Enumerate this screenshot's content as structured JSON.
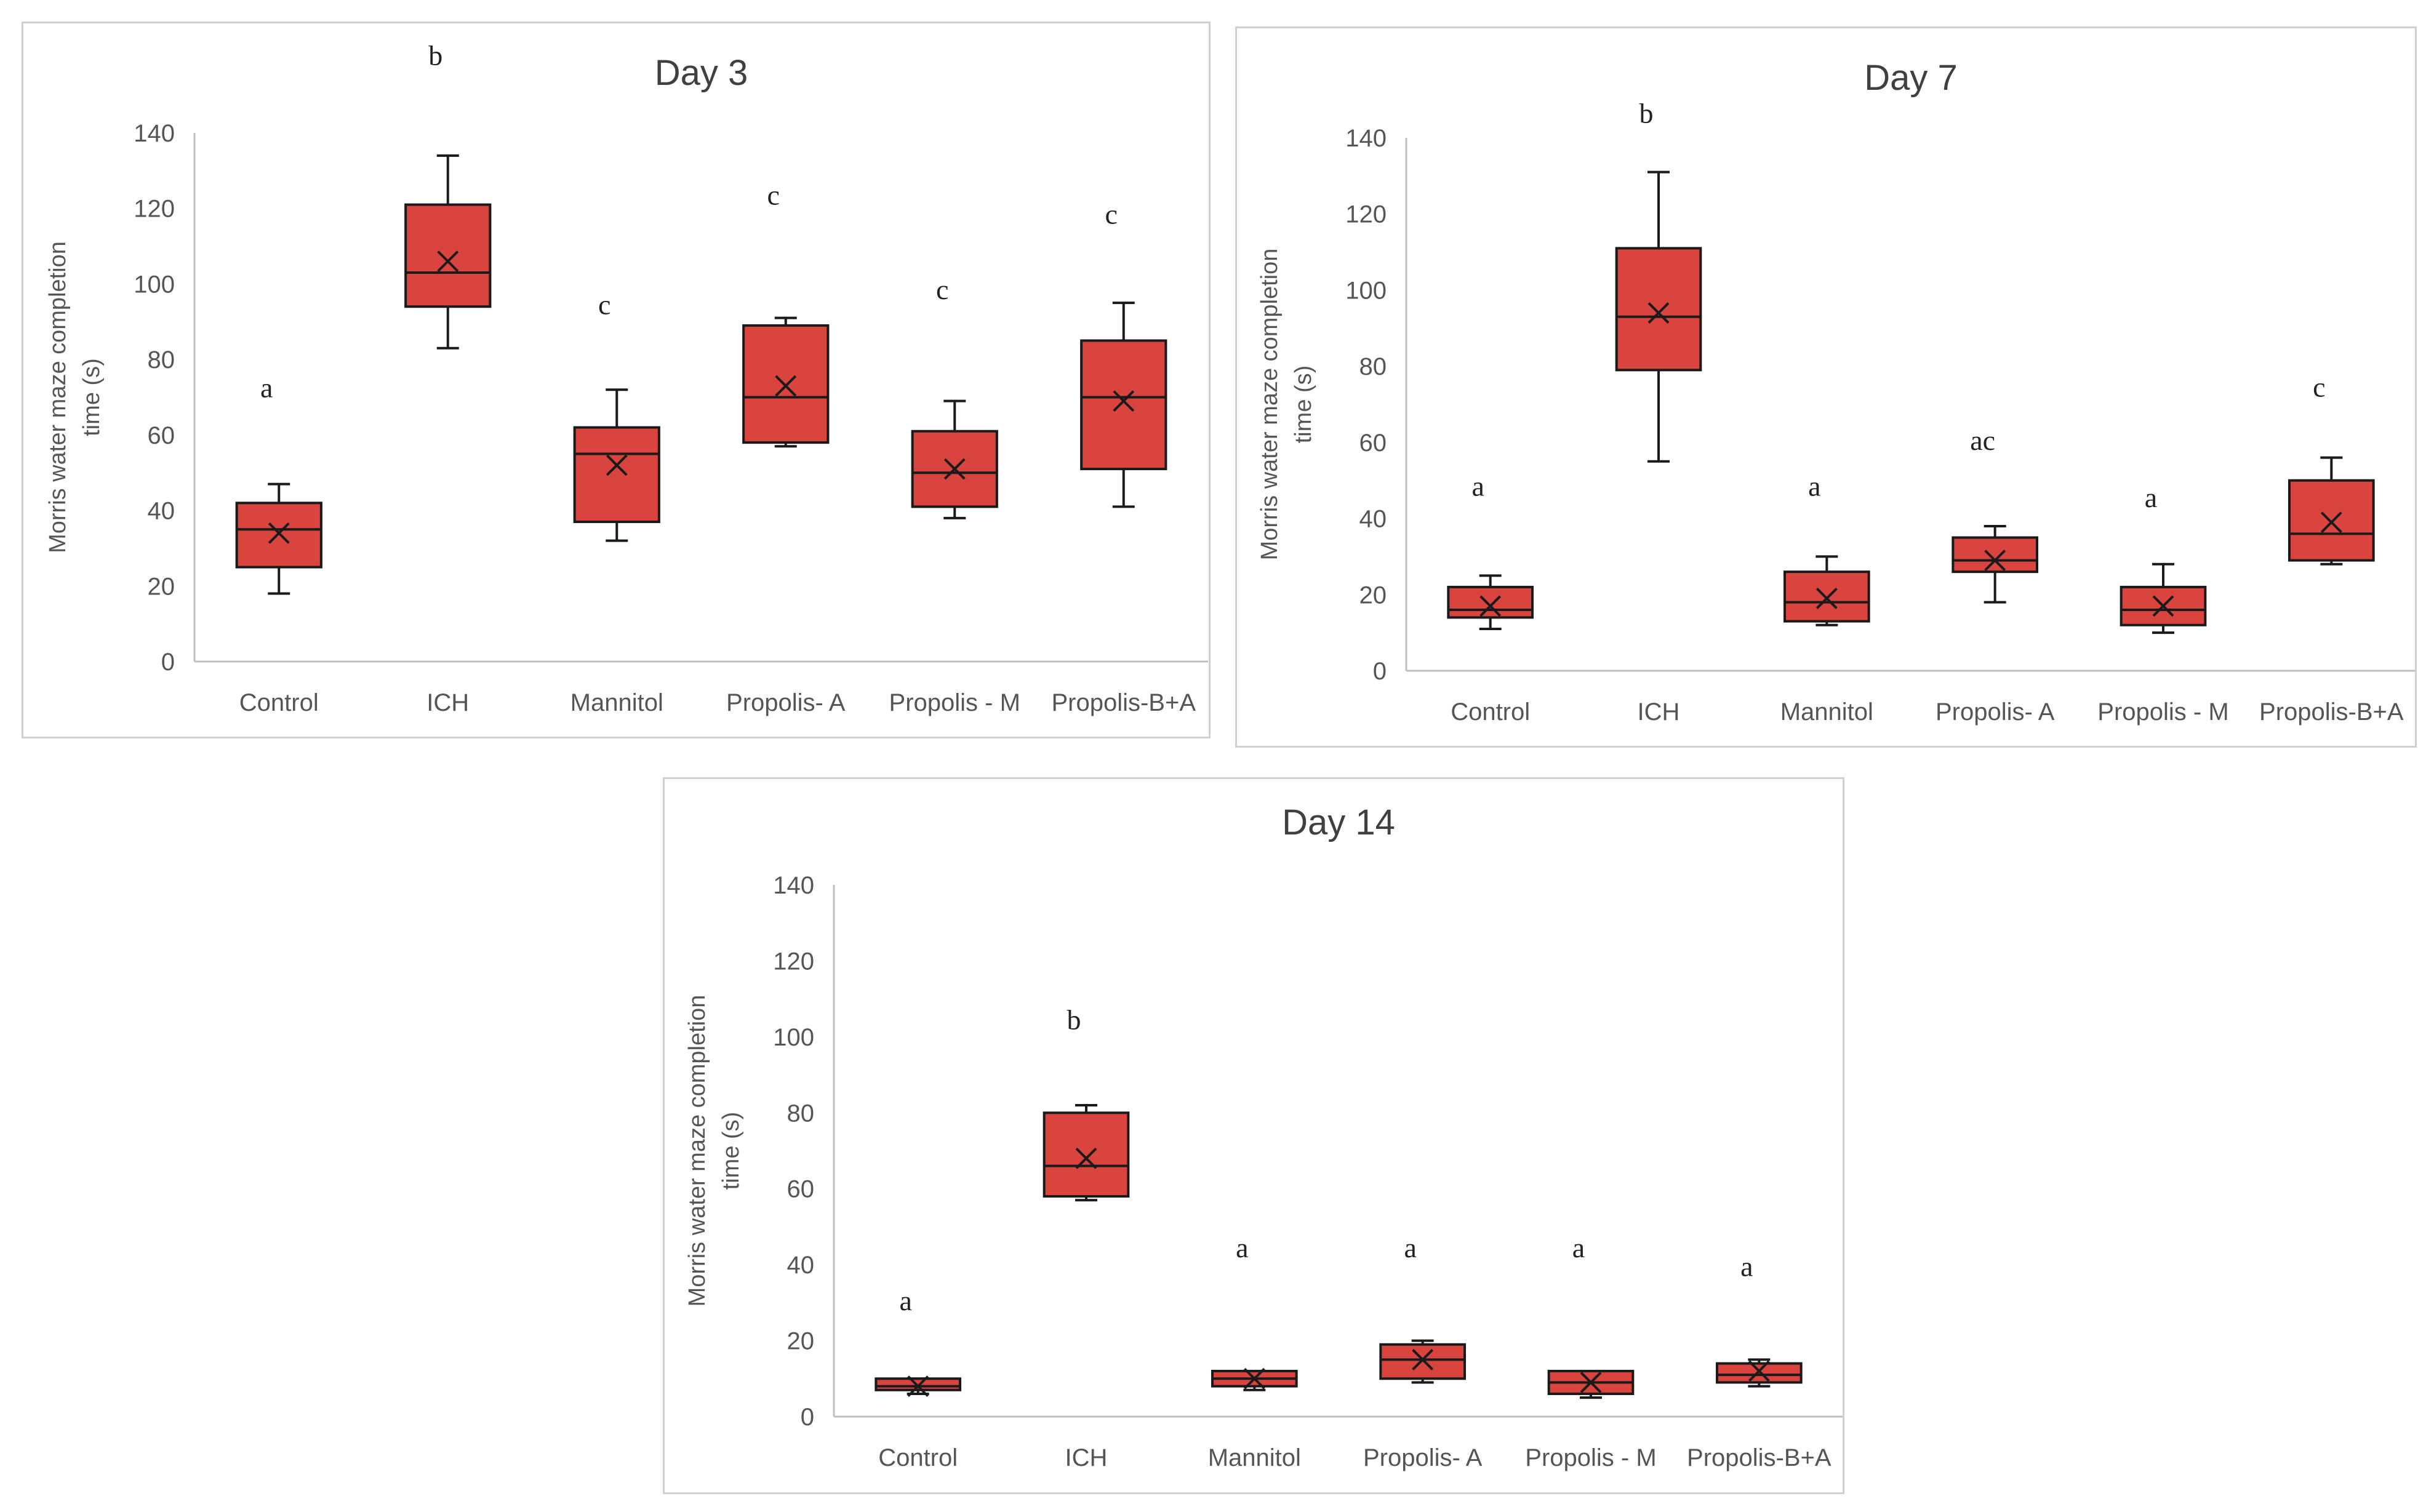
{
  "chart_data": [
    {
      "type": "box",
      "title": "Day 3",
      "ylabel_lines": [
        "Morris water maze completion",
        "time (s)"
      ],
      "categories": [
        "Control",
        "ICH",
        "Mannitol",
        "Propolis- A",
        "Propolis - M",
        "Propolis-B+A"
      ],
      "y_ticks": [
        "0",
        "20",
        "40",
        "60",
        "80",
        "100",
        "120",
        "140"
      ],
      "ylim": [
        0,
        140
      ],
      "grid": false,
      "series": [
        {
          "min": 18,
          "q1": 25,
          "median": 35,
          "q3": 42,
          "max": 47,
          "mean": 34
        },
        {
          "min": 83,
          "q1": 94,
          "median": 103,
          "q3": 121,
          "max": 134,
          "mean": 106
        },
        {
          "min": 32,
          "q1": 37,
          "median": 55,
          "q3": 62,
          "max": 72,
          "mean": 52
        },
        {
          "min": 57,
          "q1": 58,
          "median": 70,
          "q3": 89,
          "max": 91,
          "mean": 73
        },
        {
          "min": 38,
          "q1": 41,
          "median": 50,
          "q3": 61,
          "max": 69,
          "mean": 51
        },
        {
          "min": 41,
          "q1": 51,
          "median": 70,
          "q3": 85,
          "max": 95,
          "mean": 69
        }
      ],
      "significance_labels": [
        "a",
        "b",
        "c",
        "c",
        "c",
        "c"
      ],
      "significance_values": [
        70,
        158,
        92,
        121,
        96,
        116
      ],
      "box_color": "#d9443f"
    },
    {
      "type": "box",
      "title": "Day 7",
      "ylabel_lines": [
        "Morris water maze completion",
        "time (s)"
      ],
      "categories": [
        "Control",
        "ICH",
        "Mannitol",
        "Propolis- A",
        "Propolis - M",
        "Propolis-B+A"
      ],
      "y_ticks": [
        "0",
        "20",
        "40",
        "60",
        "80",
        "100",
        "120",
        "140"
      ],
      "ylim": [
        0,
        140
      ],
      "grid": false,
      "series": [
        {
          "min": 11,
          "q1": 14,
          "median": 16,
          "q3": 22,
          "max": 25,
          "mean": 17
        },
        {
          "min": 55,
          "q1": 79,
          "median": 93,
          "q3": 111,
          "max": 131,
          "mean": 94
        },
        {
          "min": 12,
          "q1": 13,
          "median": 18,
          "q3": 26,
          "max": 30,
          "mean": 19
        },
        {
          "min": 18,
          "q1": 26,
          "median": 29,
          "q3": 35,
          "max": 38,
          "mean": 29
        },
        {
          "min": 10,
          "q1": 12,
          "median": 16,
          "q3": 22,
          "max": 28,
          "mean": 17
        },
        {
          "min": 28,
          "q1": 29,
          "median": 36,
          "q3": 50,
          "max": 56,
          "mean": 39
        }
      ],
      "significance_labels": [
        "a",
        "b",
        "a",
        "ac",
        "a",
        "c"
      ],
      "significance_values": [
        46,
        144,
        46,
        58,
        43,
        72
      ],
      "box_color": "#d9443f"
    },
    {
      "type": "box",
      "title": "Day 14",
      "ylabel_lines": [
        "Morris water maze completion",
        "time (s)"
      ],
      "categories": [
        "Control",
        "ICH",
        "Mannitol",
        "Propolis- A",
        "Propolis - M",
        "Propolis-B+A"
      ],
      "y_ticks": [
        "0",
        "20",
        "40",
        "60",
        "80",
        "100",
        "120",
        "140"
      ],
      "ylim": [
        0,
        140
      ],
      "grid": false,
      "series": [
        {
          "min": 6,
          "q1": 7,
          "median": 8,
          "q3": 10,
          "max": 10,
          "mean": 8
        },
        {
          "min": 57,
          "q1": 58,
          "median": 66,
          "q3": 80,
          "max": 82,
          "mean": 68
        },
        {
          "min": 7,
          "q1": 8,
          "median": 10,
          "q3": 12,
          "max": 12,
          "mean": 10
        },
        {
          "min": 9,
          "q1": 10,
          "median": 15,
          "q3": 19,
          "max": 20,
          "mean": 15
        },
        {
          "min": 5,
          "q1": 6,
          "median": 9,
          "q3": 12,
          "max": 12,
          "mean": 9
        },
        {
          "min": 8,
          "q1": 9,
          "median": 11,
          "q3": 14,
          "max": 15,
          "mean": 12
        }
      ],
      "significance_labels": [
        "a",
        "b",
        "a",
        "a",
        "a",
        "a"
      ],
      "significance_values": [
        28,
        102,
        42,
        42,
        42,
        37
      ],
      "box_color": "#d9443f"
    }
  ]
}
